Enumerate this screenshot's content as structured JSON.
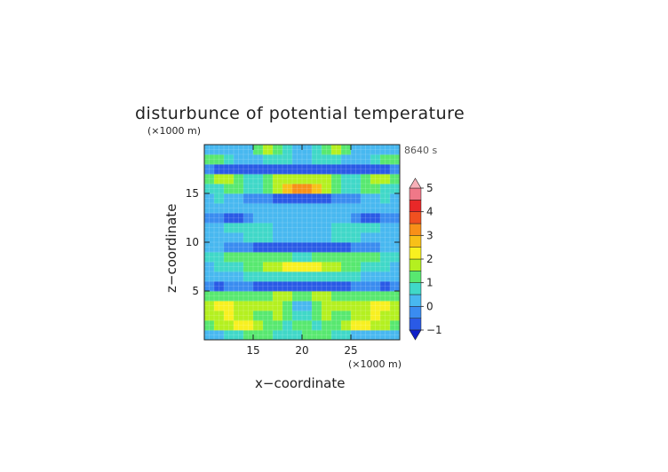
{
  "chart_data": {
    "type": "heatmap",
    "title": "disturbunce of potential temperature",
    "time_label": "8640 s",
    "xlabel": "x−coordinate",
    "ylabel": "z−coordinate",
    "x_unit": "(×1000 m)",
    "y_unit": "(×1000 m)",
    "xlim": [
      10,
      30
    ],
    "ylim": [
      0,
      20
    ],
    "x_ticks": [
      15,
      20,
      25
    ],
    "y_ticks": [
      5,
      10,
      15
    ],
    "grid": true,
    "colorbar": {
      "levels": [
        -1,
        -0.5,
        0,
        0.5,
        1,
        1.5,
        2,
        2.5,
        3,
        3.5,
        4,
        4.5,
        5
      ],
      "tick_labels": [
        "−1",
        "0",
        "1",
        "2",
        "3",
        "4",
        "5"
      ],
      "colors": [
        "#1020c8",
        "#2a5ae6",
        "#3a8cf0",
        "#48b8f0",
        "#40d8c8",
        "#58e870",
        "#b4f020",
        "#f8f020",
        "#f8c018",
        "#f89018",
        "#f05020",
        "#e82828",
        "#f07888",
        "#f8b0b8"
      ],
      "extend": "both"
    },
    "value_grid_note": "",
    "values": [
      [
        0.3,
        0.4,
        0.6,
        0.9,
        1.2,
        1.3,
        1.1,
        0.8,
        0.7,
        0.9,
        1.1,
        1.3,
        1.2,
        0.9,
        0.6,
        0.4,
        0.3,
        0.3,
        0.3,
        0.3
      ],
      [
        1.3,
        1.6,
        1.9,
        2.1,
        2.0,
        1.6,
        1.3,
        1.1,
        0.9,
        1.2,
        1.2,
        0.9,
        1.1,
        1.3,
        1.6,
        2.0,
        2.1,
        1.9,
        1.6,
        1.3
      ],
      [
        1.6,
        1.9,
        2.1,
        1.8,
        1.5,
        1.2,
        1.4,
        1.7,
        1.2,
        0.6,
        0.6,
        1.2,
        1.7,
        1.4,
        1.2,
        1.5,
        1.8,
        2.1,
        1.9,
        1.6
      ],
      [
        1.9,
        2.1,
        2.0,
        1.8,
        1.6,
        1.7,
        1.9,
        1.5,
        1.0,
        0.4,
        0.4,
        1.0,
        1.5,
        1.9,
        1.7,
        1.6,
        1.8,
        2.0,
        2.1,
        1.9
      ],
      [
        1.0,
        1.1,
        1.2,
        1.3,
        1.3,
        1.4,
        1.4,
        1.5,
        1.5,
        1.4,
        1.4,
        1.5,
        1.5,
        1.4,
        1.4,
        1.3,
        1.3,
        1.2,
        1.1,
        1.0
      ],
      [
        -0.3,
        -0.6,
        -0.4,
        -0.2,
        -0.3,
        -0.7,
        -0.8,
        -0.9,
        -0.9,
        -0.8,
        -0.8,
        -0.9,
        -0.9,
        -0.8,
        -0.7,
        -0.3,
        -0.2,
        -0.4,
        -0.6,
        -0.3
      ],
      [
        0.2,
        0.3,
        0.3,
        0.4,
        0.5,
        0.7,
        0.7,
        0.8,
        0.8,
        0.8,
        0.8,
        0.8,
        0.8,
        0.7,
        0.7,
        0.5,
        0.4,
        0.3,
        0.3,
        0.2
      ],
      [
        0.4,
        0.5,
        0.6,
        0.8,
        1.1,
        1.3,
        1.6,
        1.8,
        2.0,
        2.1,
        2.1,
        2.0,
        1.8,
        1.6,
        1.3,
        1.1,
        0.8,
        0.6,
        0.5,
        0.4
      ],
      [
        0.8,
        0.9,
        1.0,
        1.1,
        1.2,
        1.3,
        1.3,
        1.2,
        1.0,
        0.8,
        0.8,
        1.0,
        1.2,
        1.3,
        1.3,
        1.2,
        1.1,
        1.0,
        0.9,
        0.8
      ],
      [
        0.2,
        0.1,
        -0.1,
        -0.3,
        -0.5,
        -0.6,
        -0.8,
        -0.8,
        -0.9,
        -0.9,
        -0.9,
        -0.9,
        -0.8,
        -0.8,
        -0.6,
        -0.5,
        -0.3,
        -0.1,
        0.1,
        0.2
      ],
      [
        0.3,
        0.3,
        0.4,
        0.4,
        0.5,
        0.5,
        0.5,
        0.4,
        0.4,
        0.4,
        0.4,
        0.4,
        0.4,
        0.5,
        0.5,
        0.5,
        0.4,
        0.4,
        0.3,
        0.3
      ],
      [
        0.3,
        0.4,
        0.5,
        0.6,
        0.6,
        0.5,
        0.5,
        0.4,
        0.4,
        0.3,
        0.3,
        0.4,
        0.4,
        0.5,
        0.5,
        0.6,
        0.6,
        0.5,
        0.4,
        0.3
      ],
      [
        -0.1,
        -0.4,
        -0.6,
        -0.6,
        -0.3,
        0.0,
        0.2,
        0.3,
        0.3,
        0.3,
        0.3,
        0.3,
        0.3,
        0.2,
        0.0,
        -0.3,
        -0.6,
        -0.6,
        -0.4,
        -0.1
      ],
      [
        0.2,
        0.3,
        0.3,
        0.3,
        0.3,
        0.3,
        0.2,
        0.2,
        0.2,
        0.2,
        0.2,
        0.2,
        0.2,
        0.2,
        0.3,
        0.3,
        0.3,
        0.3,
        0.3,
        0.2
      ],
      [
        0.4,
        0.5,
        0.3,
        0.1,
        -0.3,
        -0.4,
        -0.5,
        -0.7,
        -0.9,
        -0.9,
        -0.9,
        -0.9,
        -0.7,
        -0.5,
        -0.4,
        -0.3,
        0.1,
        0.3,
        0.5,
        0.4
      ],
      [
        0.6,
        0.9,
        1.3,
        1.1,
        0.7,
        0.9,
        1.3,
        1.9,
        2.7,
        3.1,
        3.1,
        2.7,
        1.9,
        1.3,
        0.9,
        0.7,
        1.1,
        1.3,
        0.9,
        0.6
      ],
      [
        1.4,
        1.5,
        1.6,
        1.3,
        0.9,
        0.9,
        1.2,
        1.6,
        1.8,
        1.7,
        1.7,
        1.8,
        1.6,
        1.2,
        0.9,
        0.9,
        1.3,
        1.6,
        1.5,
        1.4
      ],
      [
        -0.4,
        -0.6,
        -0.8,
        -0.9,
        -0.9,
        -0.8,
        -0.9,
        -0.9,
        -0.8,
        -0.7,
        -0.7,
        -0.8,
        -0.9,
        -0.9,
        -0.8,
        -0.9,
        -0.9,
        -0.8,
        -0.6,
        -0.4
      ],
      [
        1.4,
        1.1,
        0.6,
        0.2,
        0.1,
        0.3,
        0.6,
        0.9,
        0.7,
        0.3,
        0.3,
        0.7,
        0.9,
        0.6,
        0.3,
        0.1,
        0.2,
        0.6,
        1.1,
        1.4
      ],
      [
        0.3,
        0.2,
        0.1,
        0.1,
        0.4,
        1.0,
        1.6,
        1.4,
        0.7,
        0.2,
        0.2,
        0.7,
        1.4,
        1.6,
        1.0,
        0.4,
        0.1,
        0.1,
        0.2,
        0.3
      ]
    ]
  }
}
